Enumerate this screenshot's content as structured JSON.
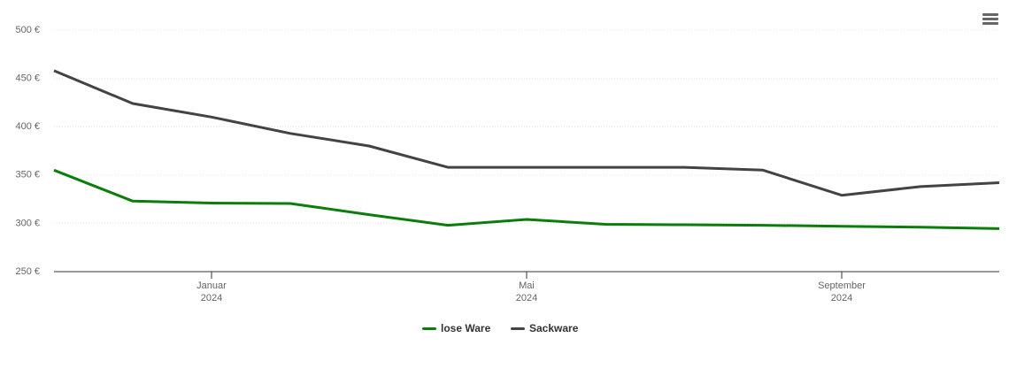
{
  "chart_data": {
    "type": "line",
    "x": [
      "2023-11",
      "2023-12",
      "2024-01",
      "2024-02",
      "2024-03",
      "2024-04",
      "2024-05",
      "2024-06",
      "2024-07",
      "2024-08",
      "2024-09",
      "2024-10",
      "2024-11"
    ],
    "xlim": [
      "2023-11",
      "2024-11"
    ],
    "xticks": [
      {
        "value": "2024-01",
        "label": "Januar 2024"
      },
      {
        "value": "2024-05",
        "label": "Mai 2024"
      },
      {
        "value": "2024-09",
        "label": "September 2024"
      }
    ],
    "ylim": [
      250,
      500
    ],
    "yticks": [
      {
        "value": 250,
        "label": "250 €"
      },
      {
        "value": 300,
        "label": "300 €"
      },
      {
        "value": 350,
        "label": "350 €"
      },
      {
        "value": 400,
        "label": "400 €"
      },
      {
        "value": 450,
        "label": "450 €"
      },
      {
        "value": 500,
        "label": "500 €"
      }
    ],
    "grid": true,
    "legend": "bottom",
    "series": [
      {
        "name": "lose Ware",
        "color": "#0a7d0a",
        "values": [
          355,
          323,
          321,
          320.5,
          309,
          298,
          304,
          299,
          298.5,
          298,
          297,
          296,
          294.5
        ]
      },
      {
        "name": "Sackware",
        "color": "#434343",
        "values": [
          458,
          424,
          410,
          393,
          380,
          358,
          358,
          358,
          358,
          355,
          329,
          338,
          342
        ]
      }
    ]
  }
}
